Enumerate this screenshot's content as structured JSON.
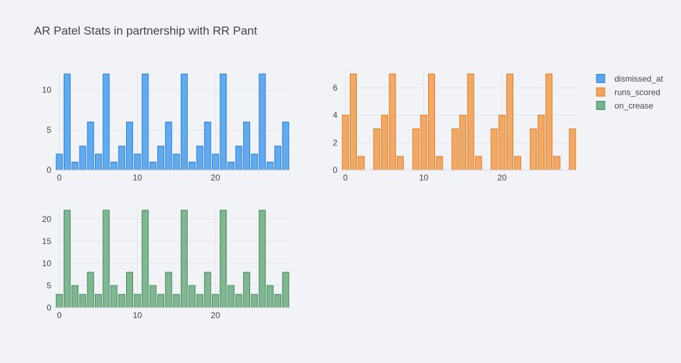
{
  "title": "AR Patel Stats in partnership with RR Pant",
  "colors": {
    "background": "#f2f3f7",
    "grid": "#e1e4ea",
    "text": "#444444"
  },
  "chart_data": [
    {
      "type": "bar",
      "series_name": "dismissed_at",
      "color": "#5aa5ef",
      "stroke": "#2a7fd4",
      "x": [
        0,
        1,
        2,
        3,
        4,
        5,
        6,
        7,
        8,
        9,
        10,
        11,
        12,
        13,
        14,
        15,
        16,
        17,
        18,
        19,
        20,
        21,
        22,
        23,
        24,
        25,
        26,
        27,
        28,
        29
      ],
      "values": [
        2,
        12,
        1,
        3,
        6,
        2,
        12,
        1,
        3,
        6,
        2,
        12,
        1,
        3,
        6,
        2,
        12,
        1,
        3,
        6,
        2,
        12,
        1,
        3,
        6,
        2,
        12,
        1,
        3,
        6
      ],
      "xlim": [
        -0.5,
        29.5
      ],
      "ylim": [
        0,
        12.6
      ],
      "xticks": [
        0,
        10,
        20
      ],
      "yticks": [
        0,
        5,
        10
      ],
      "grid": true
    },
    {
      "type": "bar",
      "series_name": "runs_scored",
      "color": "#f2a45e",
      "stroke": "#e07b1f",
      "x": [
        0,
        1,
        2,
        3,
        4,
        5,
        6,
        7,
        8,
        9,
        10,
        11,
        12,
        13,
        14,
        15,
        16,
        17,
        18,
        19,
        20,
        21,
        22,
        23,
        24,
        25,
        26,
        27,
        28,
        29
      ],
      "values": [
        4,
        7,
        1,
        0,
        3,
        4,
        7,
        1,
        0,
        3,
        4,
        7,
        1,
        0,
        3,
        4,
        7,
        1,
        0,
        3,
        4,
        7,
        1,
        0,
        3,
        4,
        7,
        1,
        0,
        3
      ],
      "xlim": [
        -0.5,
        29.5
      ],
      "ylim": [
        0,
        7.35
      ],
      "xticks": [
        0,
        10,
        20
      ],
      "yticks": [
        0,
        2,
        4,
        6
      ],
      "grid": true
    },
    {
      "type": "bar",
      "series_name": "on_crease",
      "color": "#79b38c",
      "stroke": "#3d8a5a",
      "x": [
        0,
        1,
        2,
        3,
        4,
        5,
        6,
        7,
        8,
        9,
        10,
        11,
        12,
        13,
        14,
        15,
        16,
        17,
        18,
        19,
        20,
        21,
        22,
        23,
        24,
        25,
        26,
        27,
        28,
        29
      ],
      "values": [
        3,
        22,
        5,
        3,
        8,
        3,
        22,
        5,
        3,
        8,
        3,
        22,
        5,
        3,
        8,
        3,
        22,
        5,
        3,
        8,
        3,
        22,
        5,
        3,
        8,
        3,
        22,
        5,
        3,
        8
      ],
      "xlim": [
        -0.5,
        29.5
      ],
      "ylim": [
        0,
        23.1
      ],
      "xticks": [
        0,
        10,
        20
      ],
      "yticks": [
        0,
        5,
        10,
        15,
        20
      ],
      "grid": true
    }
  ],
  "legend": {
    "placement": "top-right",
    "items": [
      {
        "label": "dismissed_at",
        "color": "#5aa5ef",
        "stroke": "#2a7fd4"
      },
      {
        "label": "runs_scored",
        "color": "#f2a45e",
        "stroke": "#e07b1f"
      },
      {
        "label": "on_crease",
        "color": "#79b38c",
        "stroke": "#3d8a5a"
      }
    ]
  }
}
